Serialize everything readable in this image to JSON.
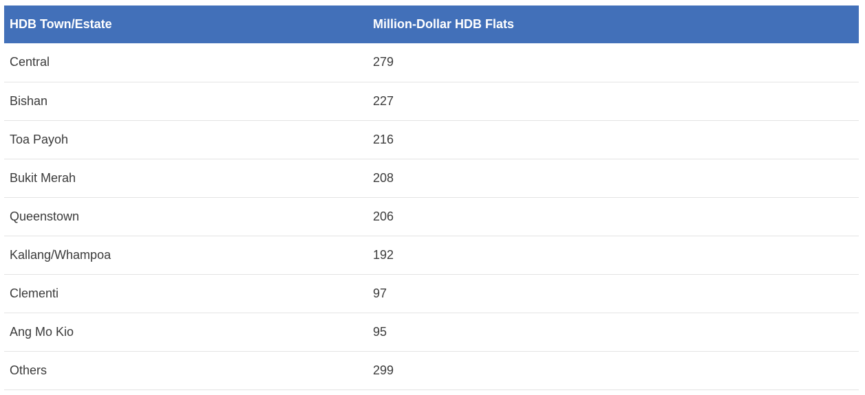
{
  "table": {
    "headers": [
      "HDB Town/Estate",
      "Million-Dollar HDB Flats"
    ],
    "rows": [
      {
        "town": "Central",
        "count": "279"
      },
      {
        "town": "Bishan",
        "count": "227"
      },
      {
        "town": "Toa Payoh",
        "count": "216"
      },
      {
        "town": "Bukit Merah",
        "count": "208"
      },
      {
        "town": "Queenstown",
        "count": "206"
      },
      {
        "town": "Kallang/Whampoa",
        "count": "192"
      },
      {
        "town": "Clementi",
        "count": "97"
      },
      {
        "town": "Ang Mo Kio",
        "count": "95"
      },
      {
        "town": "Others",
        "count": "299"
      }
    ]
  },
  "colors": {
    "header_bg": "#4270b9",
    "header_text": "#ffffff",
    "cell_text": "#3a3a3a",
    "row_border": "#e3e3e3"
  }
}
